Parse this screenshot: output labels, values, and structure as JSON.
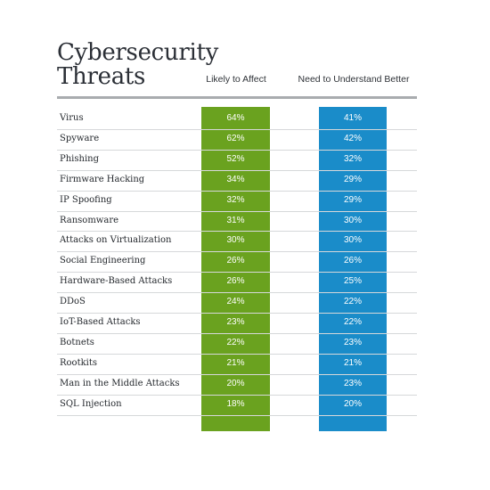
{
  "title_line1": "Cybersecurity",
  "title_line2": "Threats",
  "chart_data": {
    "type": "table",
    "title": "Cybersecurity Threats",
    "columns": [
      "Likely to Affect",
      "Need to Understand Better"
    ],
    "colors": {
      "Likely to Affect": "#6aa21f",
      "Need to Understand Better": "#1a8cc9"
    },
    "unit": "%",
    "rows": [
      {
        "label": "Virus",
        "values": [
          "64%",
          "41%"
        ]
      },
      {
        "label": "Spyware",
        "values": [
          "62%",
          "42%"
        ]
      },
      {
        "label": "Phishing",
        "values": [
          "52%",
          "32%"
        ]
      },
      {
        "label": "Firmware Hacking",
        "values": [
          "34%",
          "29%"
        ]
      },
      {
        "label": "IP Spoofing",
        "values": [
          "32%",
          "29%"
        ]
      },
      {
        "label": "Ransomware",
        "values": [
          "31%",
          "30%"
        ]
      },
      {
        "label": "Attacks on Virtualization",
        "values": [
          "30%",
          "30%"
        ]
      },
      {
        "label": "Social Engineering",
        "values": [
          "26%",
          "26%"
        ]
      },
      {
        "label": "Hardware-Based Attacks",
        "values": [
          "26%",
          "25%"
        ]
      },
      {
        "label": "DDoS",
        "values": [
          "24%",
          "22%"
        ]
      },
      {
        "label": "IoT-Based Attacks",
        "values": [
          "23%",
          "22%"
        ]
      },
      {
        "label": "Botnets",
        "values": [
          "22%",
          "23%"
        ]
      },
      {
        "label": "Rootkits",
        "values": [
          "21%",
          "21%"
        ]
      },
      {
        "label": "Man in the Middle Attacks",
        "values": [
          "20%",
          "23%"
        ]
      },
      {
        "label": "SQL Injection",
        "values": [
          "18%",
          "20%"
        ]
      }
    ]
  }
}
